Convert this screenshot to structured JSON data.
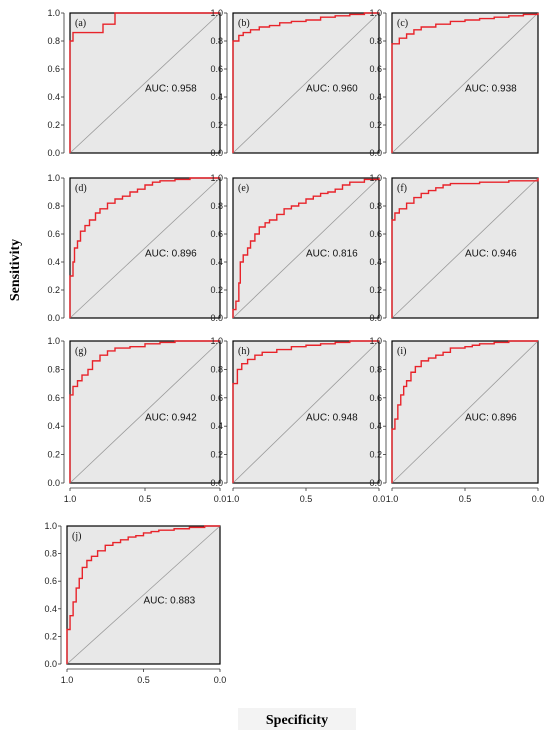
{
  "figure": {
    "ylabel": "Sensitivity",
    "xlabel": "Specificity"
  },
  "colors": {
    "curve": "#e8232a",
    "panel_bg": "#e8e8e8",
    "diagonal": "#9a9a9a",
    "frame": "#000000"
  },
  "chart_data": [
    {
      "type": "line",
      "panel": "(a)",
      "auc_text": "AUC: 0.958",
      "xlim": [
        1.0,
        0.0
      ],
      "ylim": [
        0,
        1.0
      ],
      "x": [
        1.0,
        1.0,
        0.98,
        0.98,
        0.95,
        0.95,
        0.8,
        0.78,
        0.7,
        0.7,
        0.0
      ],
      "y": [
        0.0,
        0.8,
        0.8,
        0.86,
        0.86,
        0.86,
        0.86,
        0.92,
        0.92,
        1.0,
        1.0
      ]
    },
    {
      "type": "line",
      "panel": "(b)",
      "auc_text": "AUC: 0.960",
      "xlim": [
        1.0,
        0.0
      ],
      "ylim": [
        0,
        1.0
      ],
      "x": [
        1.0,
        1.0,
        0.96,
        0.93,
        0.88,
        0.82,
        0.75,
        0.68,
        0.6,
        0.5,
        0.4,
        0.3,
        0.2,
        0.1,
        0.0
      ],
      "y": [
        0.0,
        0.8,
        0.84,
        0.86,
        0.88,
        0.9,
        0.91,
        0.93,
        0.94,
        0.95,
        0.97,
        0.98,
        0.99,
        1.0,
        1.0
      ]
    },
    {
      "type": "line",
      "panel": "(c)",
      "auc_text": "AUC: 0.938",
      "xlim": [
        1.0,
        0.0
      ],
      "ylim": [
        0,
        1.0
      ],
      "x": [
        1.0,
        1.0,
        0.95,
        0.9,
        0.85,
        0.8,
        0.7,
        0.6,
        0.5,
        0.4,
        0.3,
        0.2,
        0.1,
        0.0
      ],
      "y": [
        0.0,
        0.78,
        0.82,
        0.85,
        0.88,
        0.9,
        0.92,
        0.94,
        0.95,
        0.96,
        0.97,
        0.98,
        0.99,
        1.0
      ]
    },
    {
      "type": "line",
      "panel": "(d)",
      "auc_text": "AUC: 0.896",
      "xlim": [
        1.0,
        0.0
      ],
      "ylim": [
        0,
        1.0
      ],
      "x": [
        1.0,
        1.0,
        0.98,
        0.97,
        0.95,
        0.93,
        0.9,
        0.87,
        0.83,
        0.8,
        0.75,
        0.7,
        0.65,
        0.6,
        0.55,
        0.5,
        0.45,
        0.4,
        0.3,
        0.2,
        0.1,
        0.0
      ],
      "y": [
        0.0,
        0.3,
        0.4,
        0.5,
        0.55,
        0.62,
        0.66,
        0.7,
        0.75,
        0.78,
        0.82,
        0.85,
        0.87,
        0.9,
        0.92,
        0.95,
        0.97,
        0.98,
        0.99,
        1.0,
        1.0,
        1.0
      ]
    },
    {
      "type": "line",
      "panel": "(e)",
      "auc_text": "AUC: 0.816",
      "xlim": [
        1.0,
        0.0
      ],
      "ylim": [
        0,
        1.0
      ],
      "x": [
        1.0,
        1.0,
        0.98,
        0.96,
        0.95,
        0.93,
        0.9,
        0.88,
        0.85,
        0.82,
        0.78,
        0.75,
        0.7,
        0.65,
        0.6,
        0.55,
        0.5,
        0.45,
        0.4,
        0.35,
        0.3,
        0.25,
        0.2,
        0.1,
        0.0
      ],
      "y": [
        0.0,
        0.06,
        0.12,
        0.25,
        0.4,
        0.45,
        0.5,
        0.55,
        0.6,
        0.65,
        0.68,
        0.7,
        0.74,
        0.78,
        0.8,
        0.82,
        0.85,
        0.87,
        0.89,
        0.9,
        0.92,
        0.95,
        0.97,
        0.99,
        1.0
      ]
    },
    {
      "type": "line",
      "panel": "(f)",
      "auc_text": "AUC: 0.946",
      "xlim": [
        1.0,
        0.0
      ],
      "ylim": [
        0,
        1.0
      ],
      "x": [
        1.0,
        1.0,
        0.98,
        0.95,
        0.9,
        0.85,
        0.8,
        0.75,
        0.7,
        0.65,
        0.6,
        0.5,
        0.4,
        0.3,
        0.2,
        0.1,
        0.0
      ],
      "y": [
        0.0,
        0.7,
        0.75,
        0.78,
        0.82,
        0.86,
        0.89,
        0.91,
        0.93,
        0.95,
        0.96,
        0.96,
        0.97,
        0.97,
        0.98,
        0.98,
        1.0
      ]
    },
    {
      "type": "line",
      "panel": "(g)",
      "auc_text": "AUC: 0.942",
      "xlim": [
        1.0,
        0.0
      ],
      "ylim": [
        0,
        1.0
      ],
      "x": [
        1.0,
        1.0,
        0.98,
        0.95,
        0.92,
        0.88,
        0.85,
        0.8,
        0.75,
        0.7,
        0.6,
        0.5,
        0.4,
        0.3,
        0.2,
        0.1,
        0.0
      ],
      "y": [
        0.0,
        0.62,
        0.68,
        0.72,
        0.76,
        0.8,
        0.86,
        0.9,
        0.93,
        0.95,
        0.96,
        0.98,
        0.99,
        1.0,
        1.0,
        1.0,
        1.0
      ]
    },
    {
      "type": "line",
      "panel": "(h)",
      "auc_text": "AUC: 0.948",
      "xlim": [
        1.0,
        0.0
      ],
      "ylim": [
        0,
        1.0
      ],
      "x": [
        1.0,
        1.0,
        0.97,
        0.94,
        0.9,
        0.85,
        0.8,
        0.7,
        0.6,
        0.5,
        0.4,
        0.3,
        0.2,
        0.1,
        0.0
      ],
      "y": [
        0.0,
        0.7,
        0.8,
        0.84,
        0.87,
        0.9,
        0.92,
        0.94,
        0.96,
        0.97,
        0.98,
        0.99,
        1.0,
        1.0,
        1.0
      ]
    },
    {
      "type": "line",
      "panel": "(i)",
      "auc_text": "AUC: 0.896",
      "xlim": [
        1.0,
        0.0
      ],
      "ylim": [
        0,
        1.0
      ],
      "x": [
        1.0,
        1.0,
        0.98,
        0.96,
        0.94,
        0.92,
        0.9,
        0.87,
        0.84,
        0.8,
        0.75,
        0.7,
        0.65,
        0.6,
        0.5,
        0.45,
        0.4,
        0.3,
        0.2,
        0.1,
        0.0
      ],
      "y": [
        0.0,
        0.38,
        0.45,
        0.55,
        0.62,
        0.68,
        0.72,
        0.78,
        0.82,
        0.86,
        0.88,
        0.9,
        0.92,
        0.95,
        0.96,
        0.97,
        0.98,
        0.99,
        1.0,
        1.0,
        1.0
      ]
    },
    {
      "type": "line",
      "panel": "(j)",
      "auc_text": "AUC: 0.883",
      "xlim": [
        1.0,
        0.0
      ],
      "ylim": [
        0,
        1.0
      ],
      "x": [
        1.0,
        1.0,
        0.98,
        0.96,
        0.94,
        0.92,
        0.9,
        0.87,
        0.84,
        0.8,
        0.75,
        0.7,
        0.65,
        0.6,
        0.55,
        0.5,
        0.45,
        0.4,
        0.3,
        0.2,
        0.1,
        0.0
      ],
      "y": [
        0.0,
        0.25,
        0.35,
        0.45,
        0.55,
        0.62,
        0.7,
        0.75,
        0.78,
        0.82,
        0.86,
        0.88,
        0.9,
        0.92,
        0.93,
        0.95,
        0.96,
        0.97,
        0.98,
        0.99,
        1.0,
        1.0
      ]
    }
  ]
}
